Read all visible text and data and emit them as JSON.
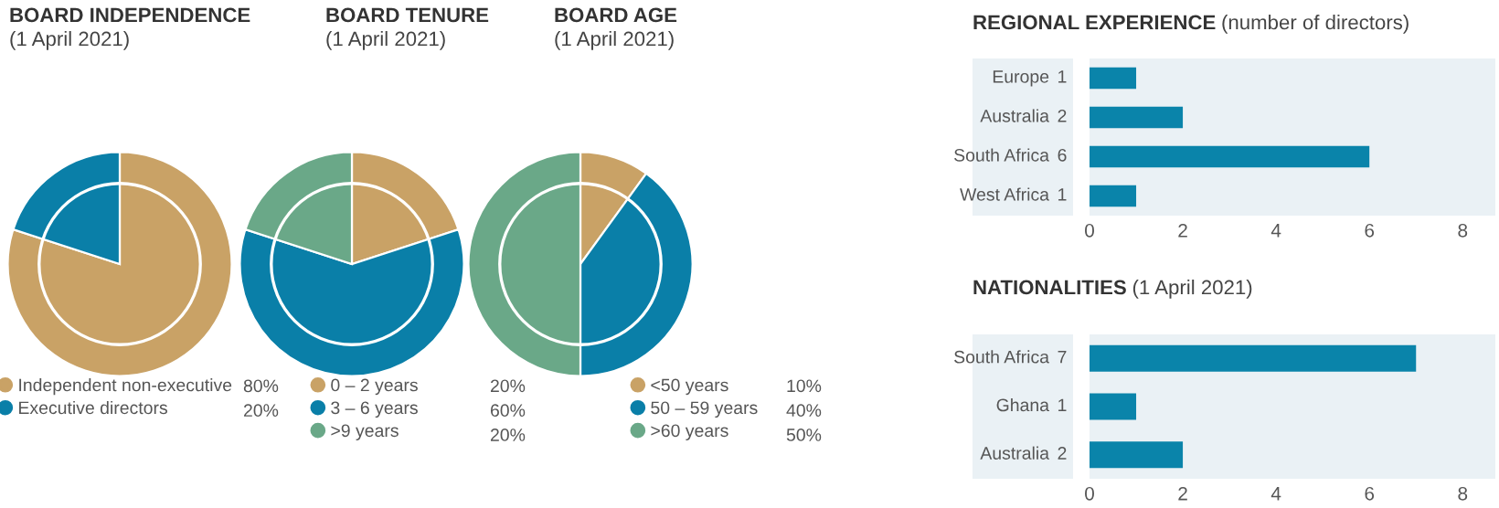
{
  "chart_data": [
    {
      "type": "pie",
      "title": "BOARD INDEPENDENCE",
      "subtitle": "(1 April 2021)",
      "categories": [
        "Independent non-executive",
        "Executive directors"
      ],
      "values": [
        80,
        20
      ],
      "colors": [
        "#c9a266",
        "#0a7fa8"
      ],
      "legend": "bottom",
      "value_labels": [
        "80%",
        "20%"
      ]
    },
    {
      "type": "pie",
      "title": "BOARD TENURE",
      "subtitle": "(1 April 2021)",
      "categories": [
        "0 – 2 years",
        "3 – 6 years",
        ">9 years"
      ],
      "values": [
        20,
        60,
        20
      ],
      "colors": [
        "#c9a266",
        "#0a7fa8",
        "#6aa888"
      ],
      "legend": "bottom",
      "value_labels": [
        "20%",
        "60%",
        "20%"
      ]
    },
    {
      "type": "pie",
      "title": "BOARD AGE",
      "subtitle": "(1 April 2021)",
      "categories": [
        "<50 years",
        "50 – 59 years",
        ">60 years"
      ],
      "values": [
        10,
        40,
        50
      ],
      "colors": [
        "#c9a266",
        "#0a7fa8",
        "#6aa888"
      ],
      "legend": "bottom",
      "value_labels": [
        "10%",
        "40%",
        "50%"
      ]
    },
    {
      "type": "bar",
      "orientation": "horizontal",
      "title": "REGIONAL EXPERIENCE",
      "subtitle": "(number of directors)",
      "categories": [
        "Europe",
        "Australia",
        "South Africa",
        "West Africa"
      ],
      "values": [
        1,
        2,
        6,
        1
      ],
      "color": "#0a84aa",
      "value_labels": [
        "1",
        "2",
        "6",
        "1"
      ],
      "xlim": [
        0,
        8.7
      ],
      "xticks": [
        0,
        2,
        4,
        6,
        8
      ]
    },
    {
      "type": "bar",
      "orientation": "horizontal",
      "title": "NATIONALITIES",
      "subtitle": "(1 April 2021)",
      "categories": [
        "South Africa",
        "Ghana",
        "Australia"
      ],
      "values": [
        7,
        1,
        2
      ],
      "color": "#0a84aa",
      "value_labels": [
        "7",
        "1",
        "2"
      ],
      "xlim": [
        0,
        8.7
      ],
      "xticks": [
        0,
        2,
        4,
        6,
        8
      ]
    }
  ]
}
